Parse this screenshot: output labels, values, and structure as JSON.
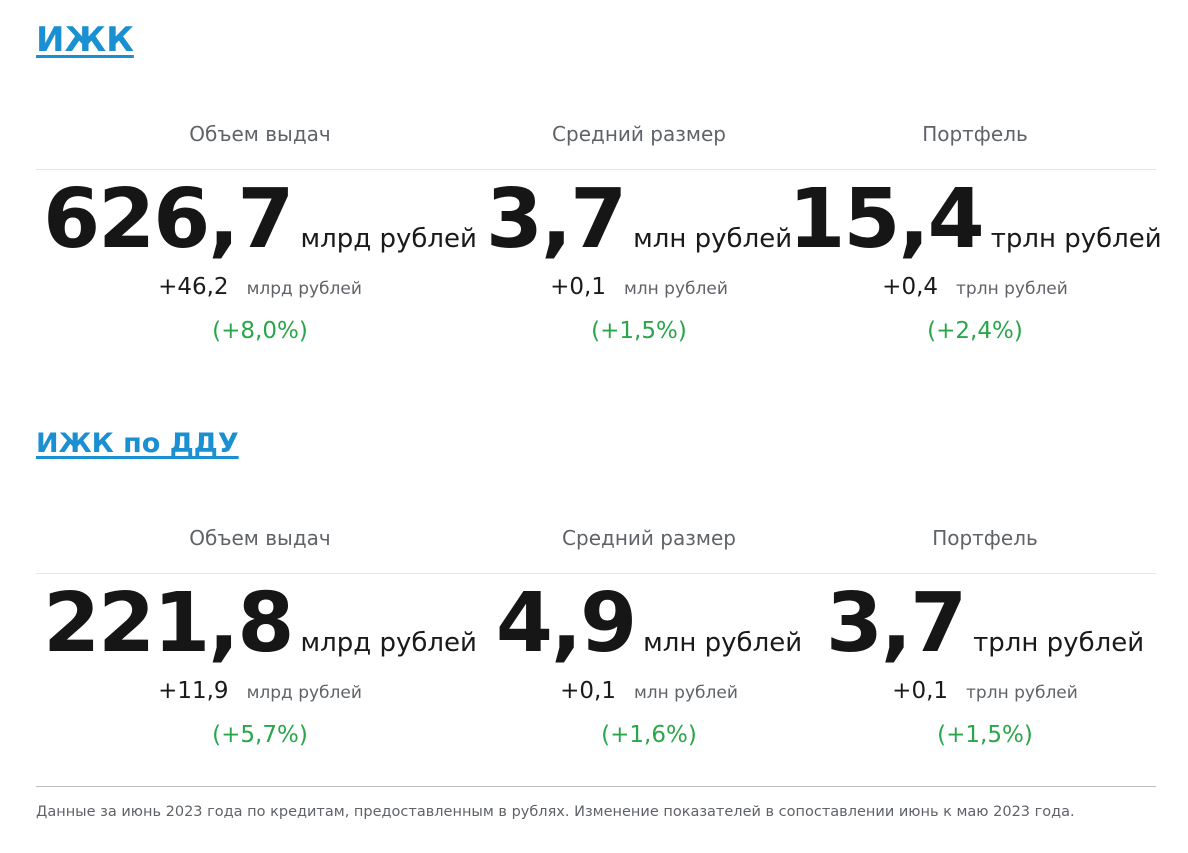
{
  "section1": {
    "title": "ИЖК",
    "metrics": [
      {
        "label": "Объем выдач",
        "value": "626,7",
        "unit": "млрд рублей",
        "delta": "+46,2",
        "delta_unit": "млрд рублей",
        "pct": "(+8,0%)"
      },
      {
        "label": "Средний размер",
        "value": "3,7",
        "unit": "млн рублей",
        "delta": "+0,1",
        "delta_unit": "млн рублей",
        "pct": "(+1,5%)"
      },
      {
        "label": "Портфель",
        "value": "15,4",
        "unit": "трлн рублей",
        "delta": "+0,4",
        "delta_unit": "трлн рублей",
        "pct": "(+2,4%)"
      }
    ]
  },
  "section2": {
    "title": "ИЖК по ДДУ",
    "metrics": [
      {
        "label": "Объем выдач",
        "value": "221,8",
        "unit": "млрд рублей",
        "delta": "+11,9",
        "delta_unit": "млрд рублей",
        "pct": "(+5,7%)"
      },
      {
        "label": "Средний размер",
        "value": "4,9",
        "unit": "млн рублей",
        "delta": "+0,1",
        "delta_unit": "млн рублей",
        "pct": "(+1,6%)"
      },
      {
        "label": "Портфель",
        "value": "3,7",
        "unit": "трлн рублей",
        "delta": "+0,1",
        "delta_unit": "трлн рублей",
        "pct": "(+1,5%)"
      }
    ]
  },
  "footnote": "Данные за июнь 2023 года по кредитам, предоставленным в рублях. Изменение показателей в сопоставлении июнь к маю 2023 года.",
  "colors": {
    "link": "#1a8fd1",
    "positive": "#2aa64a",
    "muted": "#5f6368"
  }
}
